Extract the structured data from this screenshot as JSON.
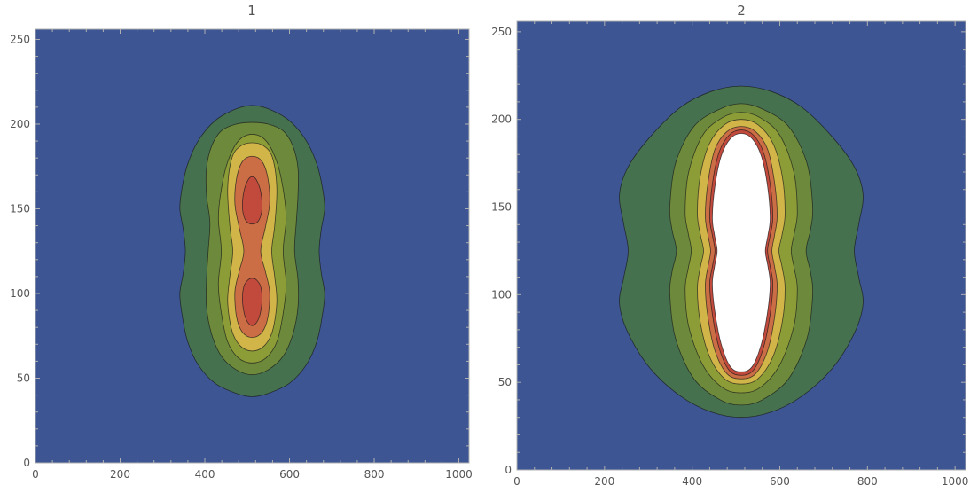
{
  "chart_data": [
    {
      "type": "contour",
      "title": "1",
      "xlim": [
        0,
        1024
      ],
      "ylim": [
        0,
        256
      ],
      "xticks": [
        0,
        200,
        400,
        600,
        800,
        1000
      ],
      "yticks": [
        0,
        50,
        100,
        150,
        200,
        250
      ],
      "xtick_labels": [
        "0",
        "200",
        "400",
        "600",
        "800",
        "1000"
      ],
      "ytick_labels": [
        "0",
        "50",
        "100",
        "150",
        "200",
        "250"
      ],
      "xlabel": "",
      "ylabel": "",
      "background_color": "#3d5593",
      "levels": [
        {
          "color": "#46714f",
          "x": [
            512,
            550,
            600,
            640,
            665,
            678,
            683,
            675,
            670,
            675,
            683,
            678,
            665,
            640,
            600,
            550,
            512,
            474,
            424,
            384,
            359,
            346,
            341,
            349,
            354,
            349,
            341,
            346,
            359,
            384,
            424,
            474
          ],
          "y": [
            39,
            41,
            47,
            58,
            72,
            88,
            100,
            112,
            125,
            138,
            150,
            162,
            176,
            190,
            202,
            209,
            211,
            209,
            202,
            190,
            176,
            162,
            150,
            138,
            125,
            112,
            100,
            88,
            72,
            58,
            47,
            41
          ]
        },
        {
          "color": "#6d8a3c",
          "x": [
            512,
            550,
            585,
            608,
            620,
            620,
            612,
            616,
            620,
            620,
            608,
            585,
            550,
            512,
            474,
            439,
            416,
            404,
            404,
            412,
            408,
            404,
            404,
            416,
            439,
            474
          ],
          "y": [
            52,
            55,
            63,
            76,
            92,
            108,
            125,
            142,
            158,
            174,
            187,
            196,
            200,
            201,
            200,
            196,
            187,
            174,
            158,
            142,
            125,
            108,
            92,
            76,
            63,
            55
          ]
        },
        {
          "color": "#8c9d38",
          "x": [
            512,
            545,
            571,
            586,
            592,
            585,
            592,
            586,
            571,
            545,
            512,
            479,
            453,
            438,
            432,
            439,
            432,
            438,
            453,
            479
          ],
          "y": [
            59,
            62,
            72,
            90,
            106,
            125,
            144,
            160,
            177,
            190,
            194,
            190,
            177,
            160,
            144,
            125,
            106,
            90,
            72,
            62
          ]
        },
        {
          "color": "#d1b548",
          "x": [
            512,
            540,
            560,
            570,
            565,
            558,
            565,
            570,
            560,
            540,
            512,
            484,
            464,
            454,
            459,
            466,
            459,
            454,
            464,
            484
          ],
          "y": [
            66,
            69,
            78,
            95,
            110,
            125,
            140,
            162,
            180,
            187,
            189,
            187,
            180,
            162,
            140,
            125,
            110,
            95,
            78,
            69
          ]
        },
        {
          "color": "#cb6d45",
          "x": [
            512,
            535,
            549,
            553,
            543,
            532,
            543,
            553,
            549,
            535,
            512,
            489,
            475,
            471,
            481,
            492,
            481,
            471,
            475,
            489
          ],
          "y": [
            74,
            77,
            86,
            101,
            113,
            125,
            139,
            153,
            168,
            178,
            181,
            178,
            168,
            153,
            139,
            125,
            113,
            101,
            86,
            77
          ]
        },
        {
          "color": "#c24a3d",
          "x": [
            512,
            527,
            535,
            532,
            522,
            512,
            502,
            492,
            489,
            497
          ],
          "y": [
            81,
            85,
            95,
            104,
            108,
            109,
            108,
            104,
            95,
            85
          ]
        },
        {
          "color": "#c24a3d",
          "x": [
            512,
            527,
            535,
            532,
            522,
            512,
            502,
            492,
            489,
            497
          ],
          "y": [
            141,
            143,
            150,
            160,
            167,
            169,
            167,
            160,
            150,
            143
          ]
        }
      ]
    },
    {
      "type": "contour",
      "title": "2",
      "xlim": [
        0,
        1024
      ],
      "ylim": [
        0,
        256
      ],
      "xticks": [
        0,
        200,
        400,
        600,
        800,
        1000
      ],
      "yticks": [
        0,
        50,
        100,
        150,
        200,
        250
      ],
      "xtick_labels": [
        "0",
        "200",
        "400",
        "600",
        "800",
        "1000"
      ],
      "ytick_labels": [
        "0",
        "50",
        "100",
        "150",
        "200",
        "250"
      ],
      "xlabel": "",
      "ylabel": "",
      "background_color": "#3d5593",
      "levels": [
        {
          "color": "#46714f",
          "x": [
            512,
            580,
            650,
            720,
            770,
            790,
            780,
            770,
            780,
            790,
            770,
            720,
            650,
            580,
            512,
            444,
            374,
            304,
            254,
            234,
            244,
            254,
            244,
            234,
            254,
            304,
            374,
            444
          ],
          "y": [
            30,
            33,
            42,
            58,
            78,
            95,
            110,
            125,
            140,
            157,
            173,
            190,
            207,
            216,
            219,
            216,
            207,
            190,
            173,
            157,
            140,
            125,
            110,
            95,
            78,
            58,
            42,
            33
          ]
        },
        {
          "color": "#6d8a3c",
          "x": [
            512,
            560,
            620,
            662,
            675,
            670,
            660,
            670,
            675,
            662,
            620,
            560,
            512,
            464,
            404,
            362,
            349,
            354,
            364,
            354,
            349,
            362,
            404,
            464
          ],
          "y": [
            37,
            40,
            52,
            75,
            100,
            113,
            125,
            137,
            150,
            175,
            196,
            206,
            209,
            206,
            196,
            175,
            150,
            137,
            125,
            113,
            100,
            75,
            52,
            40
          ]
        },
        {
          "color": "#8c9d38",
          "x": [
            512,
            555,
            600,
            632,
            640,
            633,
            626,
            633,
            640,
            632,
            600,
            555,
            512,
            469,
            424,
            392,
            384,
            391,
            398,
            391,
            384,
            392,
            424,
            469
          ],
          "y": [
            44,
            47,
            60,
            82,
            103,
            115,
            125,
            135,
            147,
            170,
            191,
            201,
            204,
            201,
            191,
            170,
            147,
            135,
            125,
            115,
            103,
            82,
            60,
            47
          ]
        },
        {
          "color": "#d1b548",
          "x": [
            512,
            550,
            585,
            606,
            612,
            605,
            598,
            605,
            612,
            606,
            585,
            550,
            512,
            474,
            439,
            418,
            412,
            419,
            426,
            419,
            412,
            418,
            439,
            474
          ],
          "y": [
            49,
            52,
            65,
            85,
            104,
            116,
            125,
            134,
            146,
            167,
            186,
            197,
            200,
            197,
            186,
            167,
            146,
            134,
            125,
            116,
            104,
            85,
            65,
            52
          ]
        },
        {
          "color": "#cb6d45",
          "x": [
            512,
            545,
            572,
            588,
            594,
            588,
            582,
            588,
            594,
            588,
            572,
            545,
            512,
            479,
            452,
            436,
            430,
            436,
            442,
            436,
            430,
            436,
            452,
            479
          ],
          "y": [
            52,
            55,
            68,
            87,
            105,
            116,
            125,
            134,
            145,
            164,
            183,
            193,
            196,
            193,
            183,
            164,
            145,
            134,
            125,
            116,
            105,
            87,
            68,
            55
          ]
        },
        {
          "color": "#c24a3d",
          "x": [
            512,
            540,
            563,
            578,
            584,
            578,
            572,
            578,
            584,
            578,
            563,
            540,
            512,
            484,
            461,
            446,
            440,
            446,
            452,
            446,
            440,
            446,
            461,
            484
          ],
          "y": [
            54,
            57,
            70,
            89,
            106,
            116,
            125,
            134,
            144,
            163,
            181,
            191,
            194,
            191,
            181,
            163,
            144,
            134,
            125,
            116,
            106,
            89,
            70,
            57
          ]
        },
        {
          "color": "#ffffff",
          "x": [
            512,
            537,
            558,
            572,
            578,
            573,
            567,
            573,
            578,
            572,
            558,
            537,
            512,
            487,
            466,
            452,
            446,
            451,
            457,
            451,
            446,
            452,
            466,
            487
          ],
          "y": [
            56,
            59,
            72,
            90,
            106,
            116,
            125,
            134,
            144,
            162,
            179,
            189,
            192,
            189,
            179,
            162,
            144,
            134,
            125,
            116,
            106,
            90,
            72,
            59
          ]
        }
      ]
    }
  ]
}
